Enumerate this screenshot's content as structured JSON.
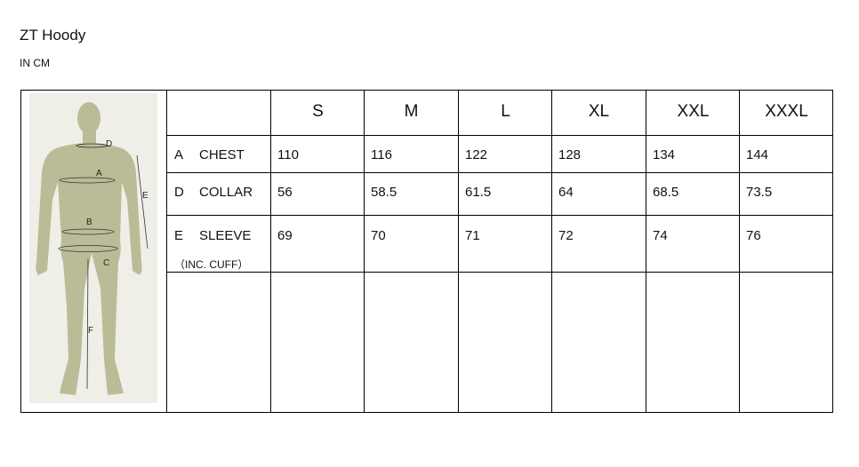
{
  "title": "ZT Hoody",
  "unit": "IN CM",
  "figure": {
    "labels": [
      "D",
      "A",
      "E",
      "B",
      "C",
      "F"
    ],
    "silhouette_color": "#b9bc96",
    "background": "#efefe8"
  },
  "sizes": [
    "S",
    "M",
    "L",
    "XL",
    "XXL",
    "XXXL"
  ],
  "rows": [
    {
      "letter": "A",
      "name": "CHEST",
      "note": "",
      "values": [
        "110",
        "116",
        "122",
        "128",
        "134",
        "144"
      ]
    },
    {
      "letter": "D",
      "name": "COLLAR",
      "note": "",
      "values": [
        "56",
        "58.5",
        "61.5",
        "64",
        "68.5",
        "73.5"
      ]
    },
    {
      "letter": "E",
      "name": "SLEEVE",
      "note": "（INC. CUFF）",
      "values": [
        "69",
        "70",
        "71",
        "72",
        "74",
        "76"
      ]
    }
  ]
}
